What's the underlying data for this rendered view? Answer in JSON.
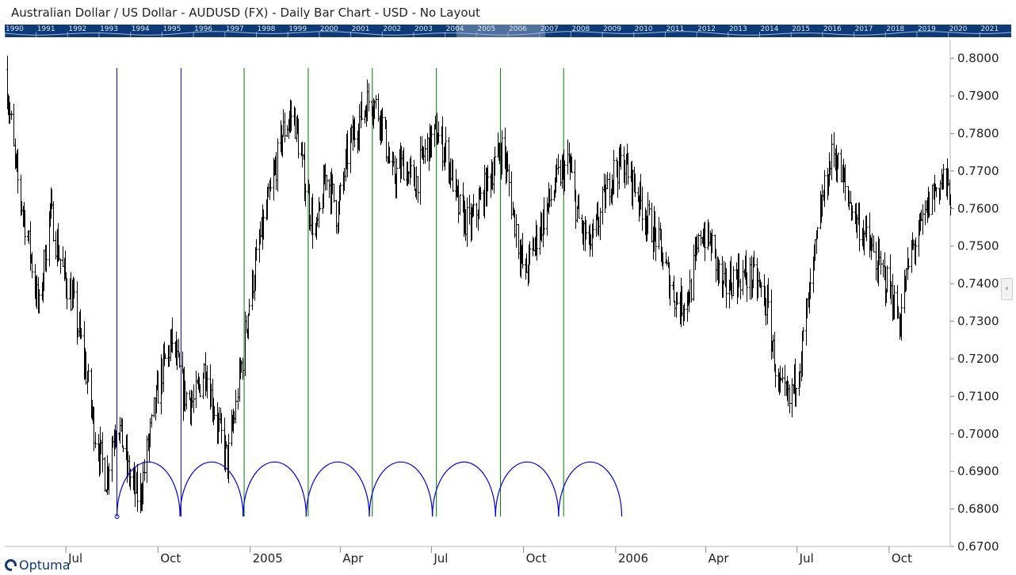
{
  "header": {
    "title": "Australian Dollar / US Dollar - AUDUSD (FX) - Daily Bar Chart - USD - No Layout"
  },
  "overview_strip": {
    "years": [
      "1990",
      "1991",
      "1992",
      "1993",
      "1994",
      "1995",
      "1996",
      "1997",
      "1998",
      "1999",
      "2000",
      "2001",
      "2002",
      "2003",
      "2004",
      "2005",
      "2006",
      "2007",
      "2008",
      "2009",
      "2010",
      "2011",
      "2012",
      "2013",
      "2014",
      "2015",
      "2016",
      "2017",
      "2018",
      "2019",
      "2020",
      "2021"
    ],
    "highlight_range": [
      "2004",
      "2006"
    ]
  },
  "branding": {
    "logo_text": "Optuma",
    "logo_icon": "optuma-icon"
  },
  "side_tab": {
    "icon": "chevron-left-icon",
    "glyph": "‹"
  },
  "colors": {
    "bars": "#000000",
    "cycle_arcs": "#0000dd",
    "blue_verticals": "#0000cc",
    "green_verticals": "#007700",
    "strip_background": "#0d3a78"
  },
  "chart_data": {
    "type": "bar",
    "subtype": "ohlc-daily",
    "title": "Australian Dollar / US Dollar - AUDUSD (FX) - Daily Bar Chart - USD - No Layout",
    "x_range": [
      "2004-05-01",
      "2006-12-01"
    ],
    "x_tick_labels": [
      {
        "date": "2004-07-01",
        "label": "Jul"
      },
      {
        "date": "2004-10-01",
        "label": "Oct"
      },
      {
        "date": "2005-01-01",
        "label": "2005"
      },
      {
        "date": "2005-04-01",
        "label": "Apr"
      },
      {
        "date": "2005-07-01",
        "label": "Jul"
      },
      {
        "date": "2005-10-01",
        "label": "Oct"
      },
      {
        "date": "2006-01-01",
        "label": "2006"
      },
      {
        "date": "2006-04-01",
        "label": "Apr"
      },
      {
        "date": "2006-07-01",
        "label": "Jul"
      },
      {
        "date": "2006-10-01",
        "label": "Oct"
      }
    ],
    "ylim": [
      0.67,
      0.805
    ],
    "y_ticks": [
      "0.8000",
      "0.7900",
      "0.7800",
      "0.7700",
      "0.7600",
      "0.7500",
      "0.7400",
      "0.7300",
      "0.7200",
      "0.7100",
      "0.7000",
      "0.6900",
      "0.6800",
      "0.6700"
    ],
    "y_axis_side": "right",
    "grid": false,
    "legend": "none",
    "price_path": [
      [
        "2004-05-01",
        0.797
      ],
      [
        "2004-05-12",
        0.77
      ],
      [
        "2004-05-24",
        0.752
      ],
      [
        "2004-06-04",
        0.733
      ],
      [
        "2004-06-15",
        0.76
      ],
      [
        "2004-06-26",
        0.745
      ],
      [
        "2004-07-08",
        0.735
      ],
      [
        "2004-07-19",
        0.72
      ],
      [
        "2004-07-30",
        0.7
      ],
      [
        "2004-08-10",
        0.688
      ],
      [
        "2004-08-21",
        0.705
      ],
      [
        "2004-09-01",
        0.69
      ],
      [
        "2004-09-12",
        0.682
      ],
      [
        "2004-09-23",
        0.7
      ],
      [
        "2004-10-04",
        0.716
      ],
      [
        "2004-10-15",
        0.725
      ],
      [
        "2004-10-26",
        0.711
      ],
      [
        "2004-11-06",
        0.708
      ],
      [
        "2004-11-17",
        0.718
      ],
      [
        "2004-11-28",
        0.704
      ],
      [
        "2004-12-09",
        0.693
      ],
      [
        "2004-12-20",
        0.712
      ],
      [
        "2004-12-31",
        0.735
      ],
      [
        "2005-01-11",
        0.752
      ],
      [
        "2005-01-22",
        0.765
      ],
      [
        "2005-02-02",
        0.78
      ],
      [
        "2005-02-13",
        0.786
      ],
      [
        "2005-02-24",
        0.768
      ],
      [
        "2005-03-07",
        0.752
      ],
      [
        "2005-03-18",
        0.77
      ],
      [
        "2005-03-29",
        0.758
      ],
      [
        "2005-04-09",
        0.776
      ],
      [
        "2005-04-20",
        0.784
      ],
      [
        "2005-05-01",
        0.79
      ],
      [
        "2005-05-12",
        0.784
      ],
      [
        "2005-05-23",
        0.768
      ],
      [
        "2005-06-03",
        0.772
      ],
      [
        "2005-06-14",
        0.766
      ],
      [
        "2005-06-25",
        0.776
      ],
      [
        "2005-07-06",
        0.78
      ],
      [
        "2005-07-17",
        0.774
      ],
      [
        "2005-07-28",
        0.76
      ],
      [
        "2005-08-08",
        0.755
      ],
      [
        "2005-08-19",
        0.762
      ],
      [
        "2005-08-30",
        0.77
      ],
      [
        "2005-09-10",
        0.777
      ],
      [
        "2005-09-21",
        0.758
      ],
      [
        "2005-10-02",
        0.742
      ],
      [
        "2005-10-13",
        0.752
      ],
      [
        "2005-10-24",
        0.76
      ],
      [
        "2005-11-04",
        0.768
      ],
      [
        "2005-11-15",
        0.772
      ],
      [
        "2005-11-26",
        0.755
      ],
      [
        "2005-12-07",
        0.75
      ],
      [
        "2005-12-18",
        0.76
      ],
      [
        "2005-12-29",
        0.77
      ],
      [
        "2006-01-09",
        0.772
      ],
      [
        "2006-01-20",
        0.766
      ],
      [
        "2006-01-31",
        0.758
      ],
      [
        "2006-02-11",
        0.752
      ],
      [
        "2006-02-22",
        0.742
      ],
      [
        "2006-03-05",
        0.734
      ],
      [
        "2006-03-16",
        0.738
      ],
      [
        "2006-03-27",
        0.754
      ],
      [
        "2006-04-07",
        0.75
      ],
      [
        "2006-04-18",
        0.738
      ],
      [
        "2006-04-29",
        0.742
      ],
      [
        "2006-05-10",
        0.742
      ],
      [
        "2006-05-21",
        0.741
      ],
      [
        "2006-06-01",
        0.734
      ],
      [
        "2006-06-12",
        0.712
      ],
      [
        "2006-06-23",
        0.708
      ],
      [
        "2006-07-04",
        0.72
      ],
      [
        "2006-07-15",
        0.74
      ],
      [
        "2006-07-26",
        0.762
      ],
      [
        "2006-08-06",
        0.776
      ],
      [
        "2006-08-17",
        0.766
      ],
      [
        "2006-08-28",
        0.758
      ],
      [
        "2006-09-08",
        0.752
      ],
      [
        "2006-09-19",
        0.745
      ],
      [
        "2006-09-30",
        0.74
      ],
      [
        "2006-10-11",
        0.73
      ],
      [
        "2006-10-22",
        0.748
      ],
      [
        "2006-11-02",
        0.755
      ],
      [
        "2006-11-13",
        0.764
      ],
      [
        "2006-11-24",
        0.768
      ],
      [
        "2006-12-01",
        0.764
      ]
    ],
    "cycle_markers": [
      {
        "date": "2004-08-21",
        "color": "blue"
      },
      {
        "date": "2004-10-24",
        "color": "blue"
      },
      {
        "date": "2004-12-26",
        "color": "green"
      },
      {
        "date": "2005-02-28",
        "color": "green"
      },
      {
        "date": "2005-05-03",
        "color": "green"
      },
      {
        "date": "2005-07-06",
        "color": "green"
      },
      {
        "date": "2005-09-08",
        "color": "green"
      },
      {
        "date": "2005-11-10",
        "color": "green"
      }
    ],
    "cycle_arcs": {
      "baseline": 0.678,
      "peak": 0.6925,
      "count": 8,
      "start": "2004-08-21",
      "period_days": 63
    }
  }
}
